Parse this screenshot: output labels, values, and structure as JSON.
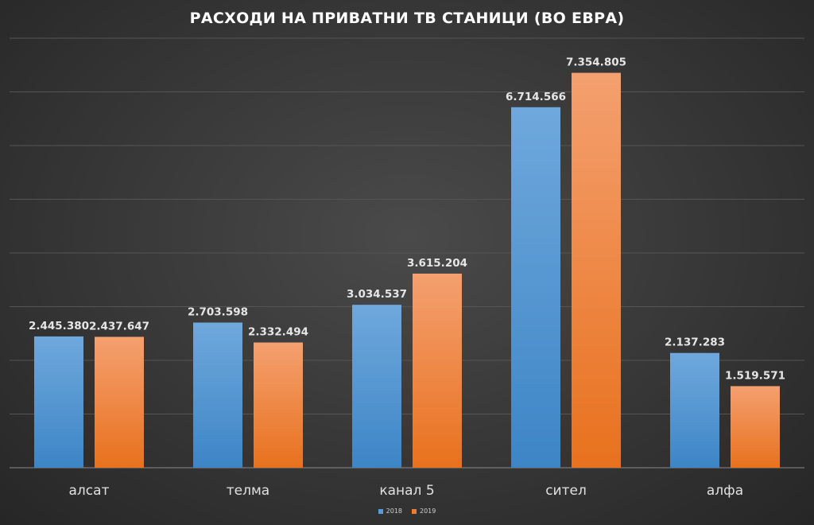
{
  "colors": {
    "series_2018_light": "#6fa8dc",
    "series_2018_dark": "#3d85c6",
    "series_2019_light": "#f4a070",
    "series_2019_dark": "#e8711d"
  },
  "chart_data": {
    "type": "bar",
    "title": "РАСХОДИ НА ПРИВАТНИ ТВ СТАНИЦИ (ВО ЕВРА)",
    "categories": [
      "алсат",
      "телма",
      "канал 5",
      "сител",
      "алфа"
    ],
    "series": [
      {
        "name": "2018",
        "values": [
          2445380,
          2703598,
          3034537,
          6714566,
          2137283
        ],
        "labels": [
          "2.445.380",
          "2.703.598",
          "3.034.537",
          "6.714.566",
          "2.137.283"
        ]
      },
      {
        "name": "2019",
        "values": [
          2437647,
          2332494,
          3615204,
          7354805,
          1519571
        ],
        "labels": [
          "2.437.647",
          "2.332.494",
          "3.615.204",
          "7.354.805",
          "1.519.571"
        ]
      }
    ],
    "ylim": [
      0,
      8000000
    ],
    "grid": true,
    "legend": "bottom-center"
  }
}
